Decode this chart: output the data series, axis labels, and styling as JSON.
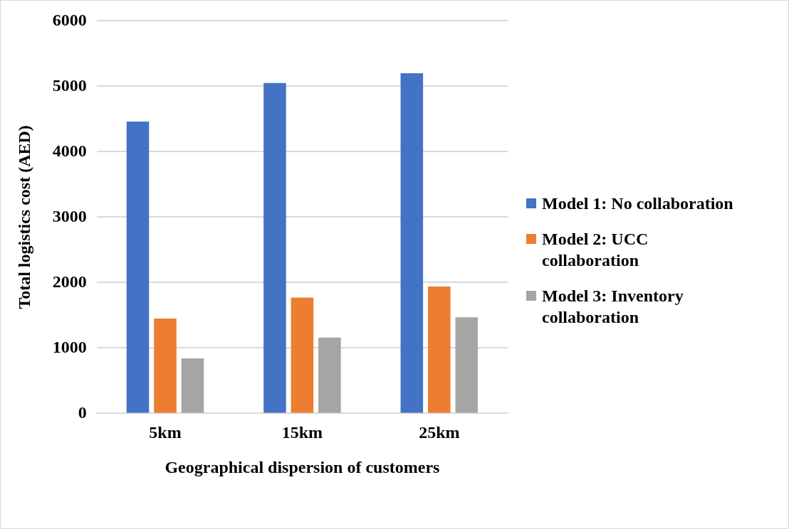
{
  "chart_data": {
    "type": "bar",
    "xlabel": "Geographical dispersion of customers",
    "ylabel": "Total logistics cost (AED)",
    "categories": [
      "5km",
      "15km",
      "25km"
    ],
    "series": [
      {
        "name": "Model 1: No collaboration",
        "color": "#4472c4",
        "values": [
          4460,
          5050,
          5200
        ]
      },
      {
        "name": "Model 2: UCC collaboration",
        "color": "#ed7d31",
        "values": [
          1450,
          1770,
          1940
        ]
      },
      {
        "name": "Model 3: Inventory collaboration",
        "color": "#a5a5a5",
        "values": [
          840,
          1160,
          1470
        ]
      }
    ],
    "ylim": [
      0,
      6000
    ],
    "yticks": [
      0,
      1000,
      2000,
      3000,
      4000,
      5000,
      6000
    ],
    "grid": "y",
    "legend": "right"
  }
}
